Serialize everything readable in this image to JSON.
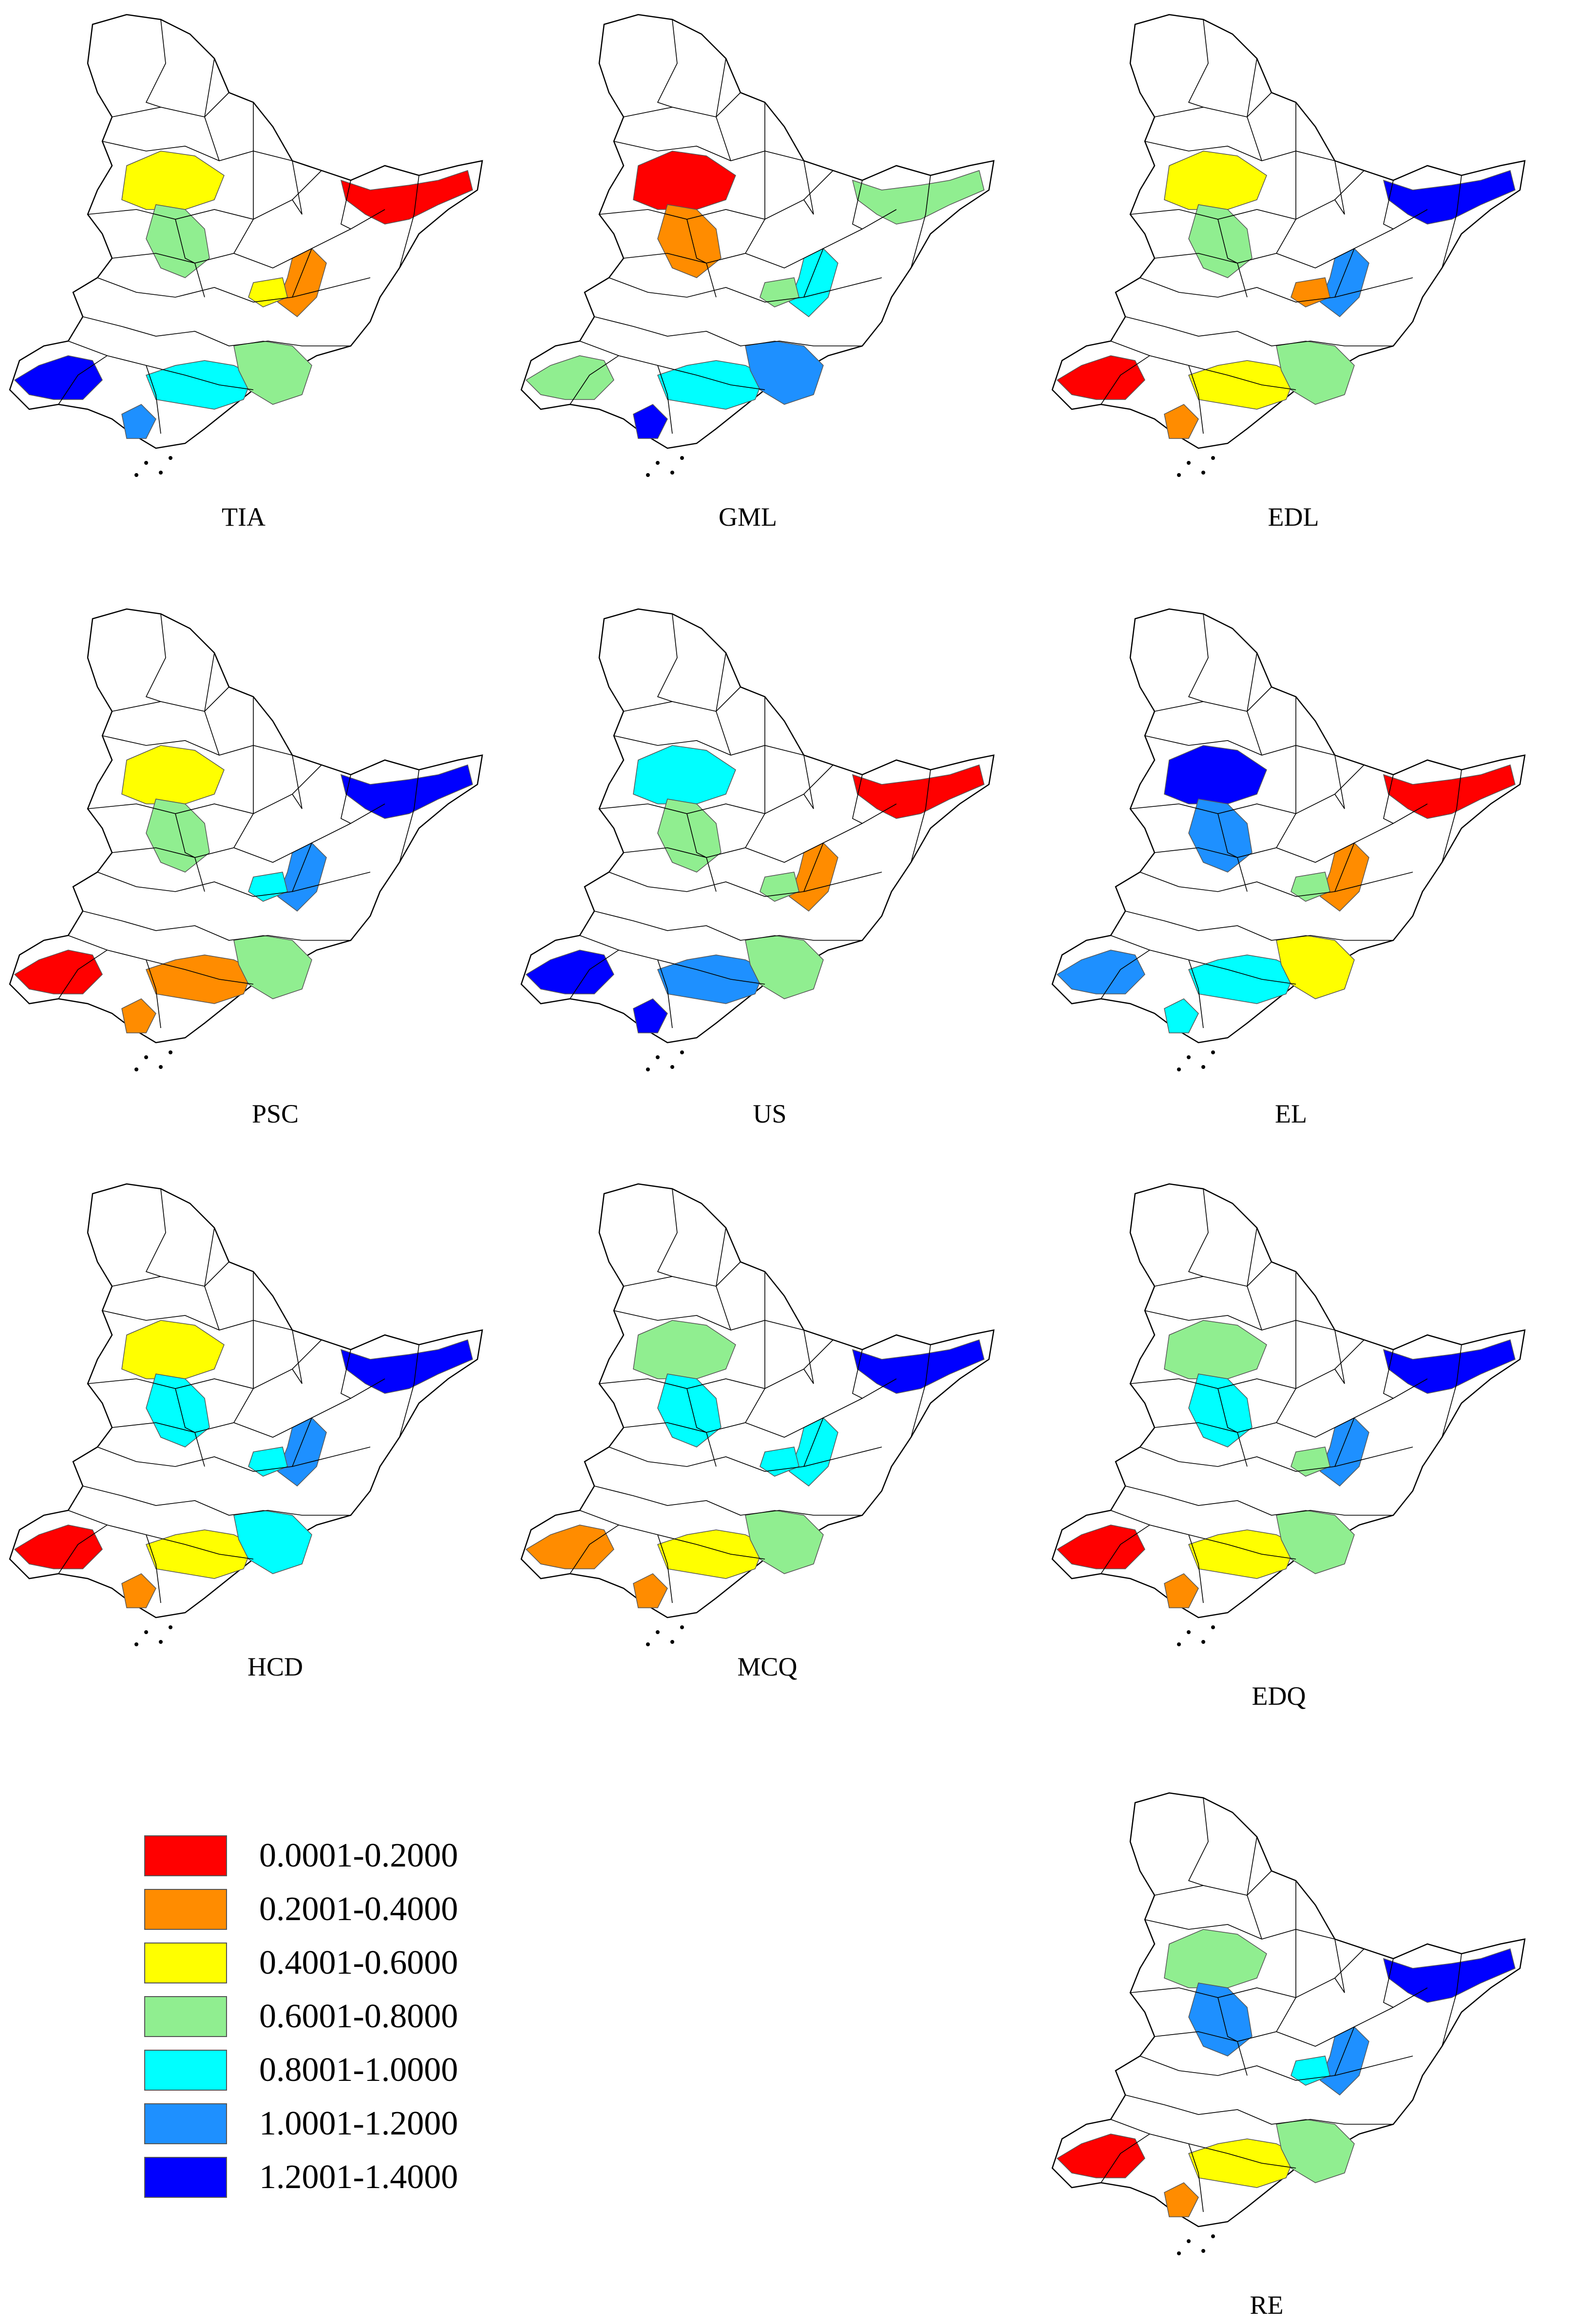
{
  "figure": {
    "classes": [
      {
        "range": "0.0001-0.2000",
        "color": "#ff0000"
      },
      {
        "range": "0.2001-0.4000",
        "color": "#ff8c00"
      },
      {
        "range": "0.4001-0.6000",
        "color": "#ffff00"
      },
      {
        "range": "0.6001-0.8000",
        "color": "#90ee90"
      },
      {
        "range": "0.8001-1.0000",
        "color": "#00ffff"
      },
      {
        "range": "1.0001-1.2000",
        "color": "#1e90ff"
      },
      {
        "range": "1.2001-1.4000",
        "color": "#0000ff"
      }
    ],
    "panels": [
      {
        "label": "TIA",
        "classes": {
          "northwest": 2,
          "north_inner": 3,
          "northeast": 0,
          "east_mid": 1,
          "mid": 2,
          "southwest": 6,
          "south_center": 4,
          "southeast": 3,
          "coast": 5
        }
      },
      {
        "label": "GML",
        "classes": {
          "northwest": 0,
          "north_inner": 1,
          "northeast": 3,
          "east_mid": 4,
          "mid": 3,
          "southwest": 3,
          "south_center": 4,
          "southeast": 5,
          "coast": 6
        }
      },
      {
        "label": "EDL",
        "classes": {
          "northwest": 2,
          "north_inner": 3,
          "northeast": 6,
          "east_mid": 5,
          "mid": 1,
          "southwest": 0,
          "south_center": 2,
          "southeast": 3,
          "coast": 1
        }
      },
      {
        "label": "PSC",
        "classes": {
          "northwest": 2,
          "north_inner": 3,
          "northeast": 6,
          "east_mid": 5,
          "mid": 4,
          "southwest": 0,
          "south_center": 1,
          "southeast": 3,
          "coast": 1
        }
      },
      {
        "label": "US",
        "classes": {
          "northwest": 4,
          "north_inner": 3,
          "northeast": 0,
          "east_mid": 1,
          "mid": 3,
          "southwest": 6,
          "south_center": 5,
          "southeast": 3,
          "coast": 6
        }
      },
      {
        "label": "EL",
        "classes": {
          "northwest": 6,
          "north_inner": 5,
          "northeast": 0,
          "east_mid": 1,
          "mid": 3,
          "southwest": 5,
          "south_center": 4,
          "southeast": 2,
          "coast": 4
        }
      },
      {
        "label": "HCD",
        "classes": {
          "northwest": 2,
          "north_inner": 4,
          "northeast": 6,
          "east_mid": 5,
          "mid": 4,
          "southwest": 0,
          "south_center": 2,
          "southeast": 4,
          "coast": 1
        }
      },
      {
        "label": "MCQ",
        "classes": {
          "northwest": 3,
          "north_inner": 4,
          "northeast": 6,
          "east_mid": 4,
          "mid": 4,
          "southwest": 1,
          "south_center": 2,
          "southeast": 3,
          "coast": 1
        }
      },
      {
        "label": "EDQ",
        "classes": {
          "northwest": 3,
          "north_inner": 4,
          "northeast": 6,
          "east_mid": 5,
          "mid": 3,
          "southwest": 0,
          "south_center": 2,
          "southeast": 3,
          "coast": 1
        }
      },
      {
        "label": "RE",
        "classes": {
          "northwest": 3,
          "north_inner": 5,
          "northeast": 6,
          "east_mid": 5,
          "mid": 4,
          "southwest": 0,
          "south_center": 2,
          "southeast": 3,
          "coast": 1
        }
      }
    ]
  }
}
